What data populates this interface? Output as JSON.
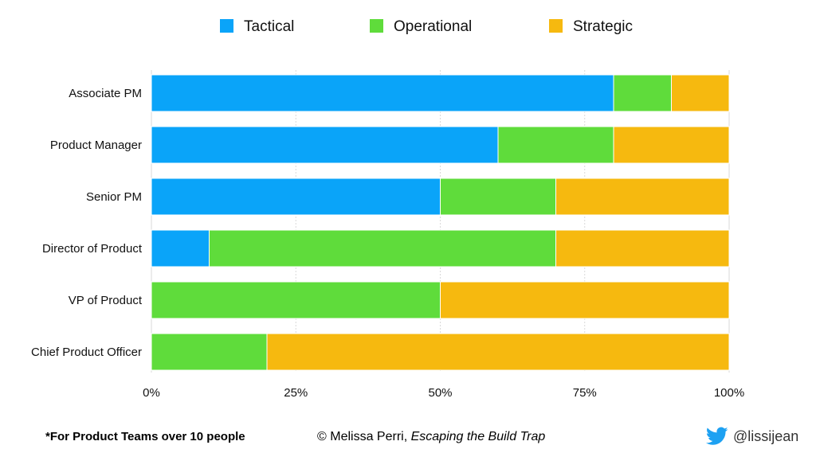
{
  "chart_data": {
    "type": "bar",
    "orientation": "horizontal",
    "stacked": true,
    "categories": [
      "Associate PM",
      "Product Manager",
      "Senior PM",
      "Director of Product",
      "VP of Product",
      "Chief Product Officer"
    ],
    "series": [
      {
        "name": "Tactical",
        "color": "#0aa4f9",
        "values": [
          80,
          60,
          50,
          10,
          0,
          0
        ]
      },
      {
        "name": "Operational",
        "color": "#5fdc3b",
        "values": [
          10,
          20,
          20,
          60,
          50,
          20
        ]
      },
      {
        "name": "Strategic",
        "color": "#f6b90f",
        "values": [
          10,
          20,
          30,
          30,
          50,
          80
        ]
      }
    ],
    "xlim": [
      0,
      100
    ],
    "x_ticks": [
      0,
      25,
      50,
      75,
      100
    ],
    "x_tick_labels": [
      "0%",
      "25%",
      "50%",
      "75%",
      "100%"
    ],
    "grid": true,
    "legend_position": "top"
  },
  "footer": {
    "note": "*For Product Teams over 10 people",
    "credit_prefix": "© Melissa Perri, ",
    "credit_book": "Escaping the Build Trap",
    "twitter_handle": "@lissijean",
    "twitter_icon": "twitter-bird-icon",
    "twitter_color": "#1da1f2"
  }
}
